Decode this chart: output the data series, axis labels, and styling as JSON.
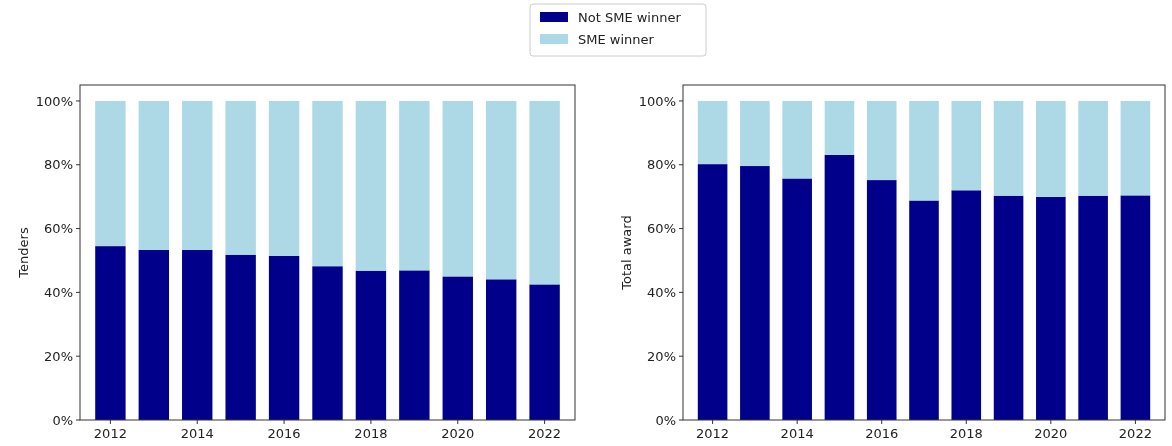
{
  "chart_data": [
    {
      "type": "bar",
      "stacked": true,
      "ylabel": "Tenders",
      "categories": [
        "2012",
        null,
        "2014",
        null,
        "2016",
        null,
        "2018",
        null,
        "2020",
        null,
        "2022"
      ],
      "ylim": [
        0,
        105
      ],
      "yticks": [
        {
          "value": 0,
          "label": "0%"
        },
        {
          "value": 20,
          "label": "20%"
        },
        {
          "value": 40,
          "label": "40%"
        },
        {
          "value": 60,
          "label": "60%"
        },
        {
          "value": 80,
          "label": "80%"
        },
        {
          "value": 100,
          "label": "100%"
        }
      ],
      "legend": "top",
      "grid": false,
      "series": [
        {
          "name": "Not SME winner",
          "color": "#00008b",
          "values": [
            54.5,
            53.3,
            53.3,
            51.8,
            51.4,
            48.2,
            46.8,
            46.9,
            45.0,
            44.1,
            42.5
          ]
        },
        {
          "name": "SME winner",
          "color": "#add8e6",
          "values": [
            45.5,
            46.7,
            46.7,
            48.2,
            48.6,
            51.8,
            53.2,
            53.1,
            55.0,
            55.9,
            57.5
          ]
        }
      ]
    },
    {
      "type": "bar",
      "stacked": true,
      "ylabel": "Total award",
      "categories": [
        "2012",
        null,
        "2014",
        null,
        "2016",
        null,
        "2018",
        null,
        "2020",
        null,
        "2022"
      ],
      "ylim": [
        0,
        105
      ],
      "yticks": [
        {
          "value": 0,
          "label": "0%"
        },
        {
          "value": 20,
          "label": "20%"
        },
        {
          "value": 40,
          "label": "40%"
        },
        {
          "value": 60,
          "label": "60%"
        },
        {
          "value": 80,
          "label": "80%"
        },
        {
          "value": 100,
          "label": "100%"
        }
      ],
      "grid": false,
      "series": [
        {
          "name": "Not SME winner",
          "color": "#00008b",
          "values": [
            80.2,
            79.6,
            75.7,
            83.1,
            75.2,
            68.8,
            72.0,
            70.3,
            69.9,
            70.3,
            70.4
          ]
        },
        {
          "name": "SME winner",
          "color": "#add8e6",
          "values": [
            19.8,
            20.4,
            24.3,
            16.9,
            24.8,
            31.2,
            28.0,
            29.7,
            30.1,
            29.7,
            29.6
          ]
        }
      ]
    }
  ]
}
